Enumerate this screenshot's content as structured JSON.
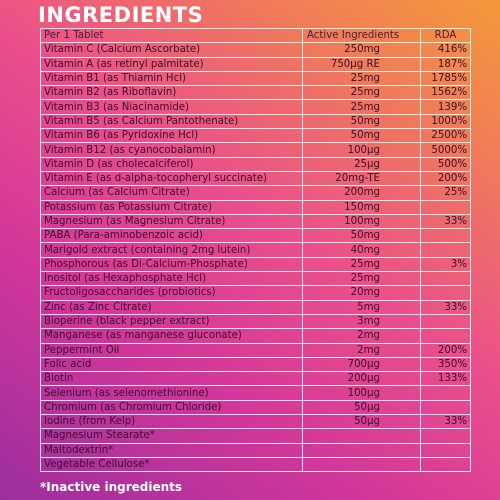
{
  "header": {
    "title": "INGREDIENTS"
  },
  "table": {
    "columns": [
      "Per 1 Tablet",
      "Active Ingredients",
      "RDA"
    ],
    "rows": [
      {
        "name": "Vitamin C (Calcium Ascorbate)",
        "amount": "250mg",
        "rda": "416%"
      },
      {
        "name": "Vitamin A (as retinyl palmitate)",
        "amount": "750µg RE",
        "rda": "187%"
      },
      {
        "name": "Vitamin B1 (as Thiamin Hcl)",
        "amount": "25mg",
        "rda": "1785%"
      },
      {
        "name": "Vitamin B2 (as Riboflavin)",
        "amount": "25mg",
        "rda": "1562%"
      },
      {
        "name": "Vitamin B3 (as Niacinamide)",
        "amount": "25mg",
        "rda": "139%"
      },
      {
        "name": "Vitamin B5 (as Calcium Pantothenate)",
        "amount": "50mg",
        "rda": "1000%"
      },
      {
        "name": "Vitamin B6 (as Pyridoxine Hcl)",
        "amount": "50mg",
        "rda": "2500%"
      },
      {
        "name": "Vitamin B12 (as cyanocobalamin)",
        "amount": "100µg",
        "rda": "5000%"
      },
      {
        "name": "Vitamin D (as cholecalciferol)",
        "amount": "25µg",
        "rda": "500%"
      },
      {
        "name": "Vitamin E (as d-alpha-tocopheryl succinate)",
        "amount": "20mg-TE",
        "rda": "200%"
      },
      {
        "name": "Calcium (as Calcium Citrate)",
        "amount": "200mg",
        "rda": "25%"
      },
      {
        "name": "Potassium (as Potassium Citrate)",
        "amount": "150mg"
      },
      {
        "name": "Magnesium (as Magnesium Citrate)",
        "amount": "100mg",
        "rda": "33%"
      },
      {
        "name": "PABA (Para-aminobenzoic acid)",
        "amount": "50mg"
      },
      {
        "name": "Marigold extract (containing 2mg lutein)",
        "amount": "40mg"
      },
      {
        "name": "Phosphorous (as Di-Calcium-Phosphate)",
        "amount": "25mg",
        "rda": "3%"
      },
      {
        "name": "Inositol (as Hexaphosphate Hcl)",
        "amount": "25mg"
      },
      {
        "name": "Fructoligosaccharides (probiotics)",
        "amount": "20mg"
      },
      {
        "name": "Zinc (as Zinc Citrate)",
        "amount": "5mg",
        "rda": "33%"
      },
      {
        "name": "Bioperine (black pepper extract)",
        "amount": "3mg"
      },
      {
        "name": "Manganese (as manganese gluconate)",
        "amount": "2mg"
      },
      {
        "name": "Peppermint Oil",
        "amount": "2mg",
        "rda": "200%"
      },
      {
        "name": "Folic acid",
        "amount": "700µg",
        "rda": "350%"
      },
      {
        "name": "Biotin",
        "amount": "200µg",
        "rda": "133%"
      },
      {
        "name": "Selenium (as selenomethionine)",
        "amount": "100µg"
      },
      {
        "name": "Chromium (as Chromium Chloride)",
        "amount": "50µg"
      },
      {
        "name": "Iodine (from Kelp)",
        "amount": "50µg",
        "rda": "33%"
      },
      {
        "name": "Magnesium Stearate*"
      },
      {
        "name": "Maltodextrin*"
      },
      {
        "name": "Vegetable Cellulose*"
      }
    ]
  },
  "footnote": "*Inactive ingredients"
}
